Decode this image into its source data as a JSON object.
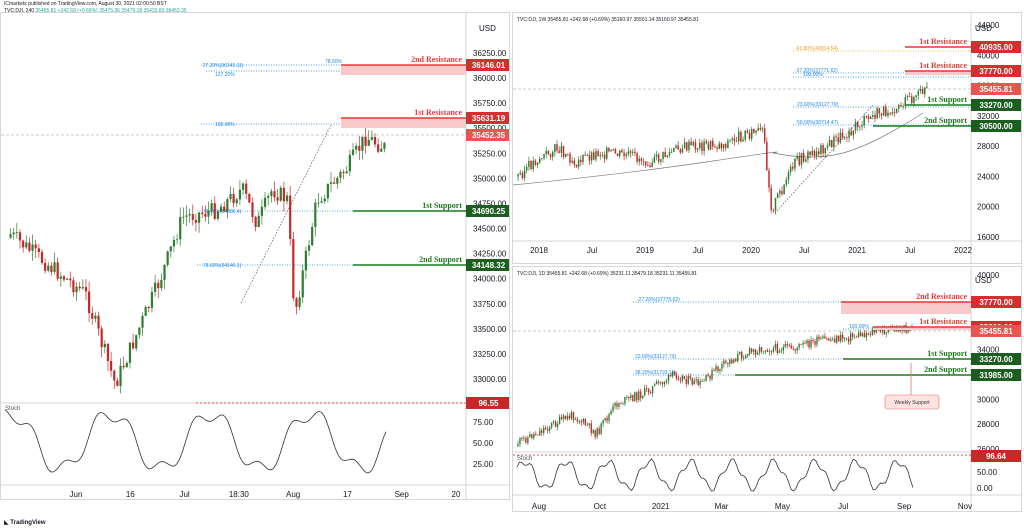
{
  "header": {
    "line1": "ICmarkets published on TradingView.com, August 30, 2021 02:00:50 BST",
    "symbol": "TVC:DJI, 240",
    "ohlc": "35455.81 +242.68 (+0.69%) 35475.36 35479.18 35433.83 35453.35"
  },
  "footer": {
    "logo": "TradingView"
  },
  "colors": {
    "up": "#26a69a",
    "down": "#c62828",
    "upBody": "#2e7d32",
    "resistance": "#e53935",
    "resistanceFill": "#f8c9c9",
    "support": "#1b7a1b",
    "price": "#ef5350",
    "fib": "#1e88e5"
  },
  "charts": [
    {
      "id": "h4",
      "title": "",
      "currency": "USD",
      "yTicks": [
        "36250.00",
        "36000.00",
        "35750.00",
        "35500.00",
        "35250.00",
        "35000.00",
        "34750.00",
        "34500.00",
        "34250.00",
        "34000.00",
        "33750.00",
        "33500.00",
        "33250.00",
        "33000.00"
      ],
      "xTicks": [
        "Jun",
        "16",
        "Jul",
        "18:30",
        "Aug",
        "17",
        "Sep",
        "20"
      ],
      "oscLabel": "Stoch",
      "oscTicks": [
        "75.00",
        "50.00",
        "25.00"
      ],
      "oscLevel": "96.55",
      "lastPrice": "35452.35",
      "levels": [
        {
          "label": "2nd Resistance",
          "price": "36146.01",
          "kind": "res"
        },
        {
          "label": "1st Resistance",
          "price": "35631.19",
          "kind": "res"
        },
        {
          "label": "1st Support",
          "price": "34690.25",
          "kind": "sup"
        },
        {
          "label": "2nd Support",
          "price": "34148.32",
          "kind": "sup"
        }
      ],
      "fibs": [
        "-27.20%(36145.11)",
        "78.60%",
        "127.20%",
        "100.00%",
        "78.60%(34686.4)",
        "78.60%(34146.1)"
      ]
    },
    {
      "id": "w1",
      "title": "TVC:DJI, 1W  35455.81 +242.68 (+0.69%) 35160.97 35501.14 35160.97 35455.81",
      "currency": "USD",
      "yTicks": [
        "44000",
        "40000",
        "36000",
        "32000",
        "28000",
        "24000",
        "20000",
        "16000"
      ],
      "xTicks": [
        "2018",
        "Jul",
        "2019",
        "Jul",
        "2020",
        "Jul",
        "2021",
        "Jul",
        "2022"
      ],
      "lastPrice": "35455.81",
      "levels": [
        {
          "label": "1st Resistance",
          "price": "40935.00",
          "kind": "res"
        },
        {
          "label": "1st Resistance",
          "price": "37770.00",
          "kind": "res"
        },
        {
          "label": "1st Support",
          "price": "33270.00",
          "kind": "sup"
        },
        {
          "label": "2nd Support",
          "price": "30500.00",
          "kind": "sup"
        }
      ],
      "fibs": [
        "-61.80%(40914.54)",
        "-27.20%(37771.62)",
        "100.00%",
        "23.60%(33127.79)",
        "50.00%(30714.47)"
      ]
    },
    {
      "id": "d1",
      "title": "TVC:DJI, 1D  35455.81 +242.68 (+0.69%) 35231.11 35479.18 35231.11 35455.81",
      "currency": "USD",
      "yTicks": [
        "40000",
        "38000",
        "36000",
        "34000",
        "32000",
        "30000",
        "28000",
        "26000"
      ],
      "xTicks": [
        "Aug",
        "Oct",
        "2021",
        "Mar",
        "May",
        "Jul",
        "Sep",
        "Nov"
      ],
      "oscLabel": "Stoch",
      "oscTicks": [
        "50.00",
        "0.00"
      ],
      "oscLevel": "96.64",
      "lastPrice": "35455.81",
      "annotation": "Weekly Support",
      "levels": [
        {
          "label": "2nd Resistance",
          "price": "37770.00",
          "kind": "res"
        },
        {
          "label": "1st Resistance",
          "price": "35600.00",
          "kind": "res"
        },
        {
          "label": "1st Support",
          "price": "33270.00",
          "kind": "sup"
        },
        {
          "label": "2nd Support",
          "price": "31985.00",
          "kind": "sup"
        }
      ],
      "fibs": [
        "-27.20%(37775.62)",
        "100.00%",
        "23.60%(33127.79)",
        "38.20%(31793.15)"
      ]
    }
  ]
}
